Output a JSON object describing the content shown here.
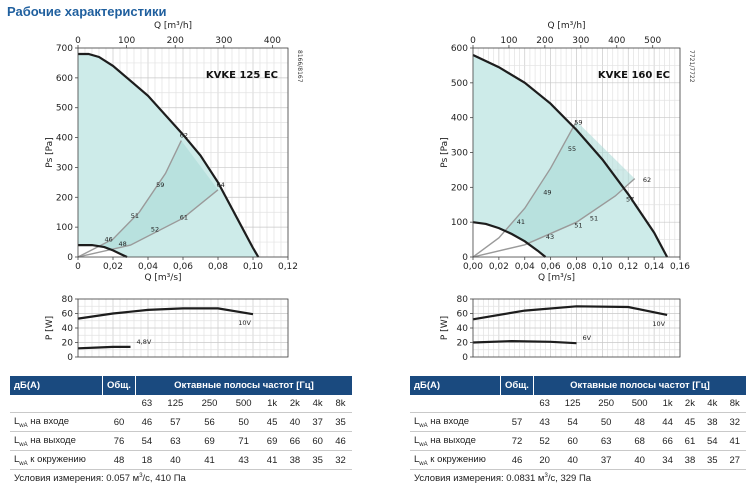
{
  "page": {
    "title": "Рабочие характеристики"
  },
  "colors": {
    "fill_light": "#cdebe9",
    "fill_dark": "#a7d9d5",
    "curve": "#1d1d1d",
    "rpm_line": "#9a9a9a",
    "table_header": "#1a4a7f"
  },
  "chart_data": [
    {
      "type": "line",
      "id": "kvke125_pressure",
      "title": "KVKE 125 EC",
      "code": "8166/8167",
      "ylabel": "Ps [Pa]",
      "xlabel": "Q [m³/s]",
      "x2label": "Q [m³/h]",
      "xlim": [
        0,
        0.12
      ],
      "ylim": [
        0,
        700
      ],
      "xticks": [
        "0",
        "0,02",
        "0,04",
        "0,06",
        "0,08",
        "0,10",
        "0,12"
      ],
      "xtick_values": [
        0,
        0.02,
        0.04,
        0.06,
        0.08,
        0.1,
        0.12
      ],
      "x2ticks": [
        "0",
        "100",
        "200",
        "300",
        "400"
      ],
      "x2tick_values": [
        0,
        100,
        200,
        300,
        400
      ],
      "yticks": [
        "0",
        "100",
        "200",
        "300",
        "400",
        "500",
        "600",
        "700"
      ],
      "ytick_values": [
        0,
        100,
        200,
        300,
        400,
        500,
        600,
        700
      ],
      "series": [
        {
          "role": "max",
          "x": [
            0,
            0.006,
            0.012,
            0.02,
            0.04,
            0.06,
            0.07,
            0.08,
            0.09,
            0.1,
            0.103
          ],
          "y": [
            680,
            680,
            670,
            640,
            540,
            410,
            340,
            250,
            140,
            30,
            0
          ]
        },
        {
          "role": "min",
          "x": [
            0,
            0.008,
            0.015,
            0.02,
            0.025,
            0.028
          ],
          "y": [
            40,
            40,
            33,
            22,
            8,
            0
          ]
        },
        {
          "role": "rpm",
          "x": [
            0,
            0.02,
            0.035,
            0.05,
            0.059
          ],
          "y": [
            0,
            60,
            150,
            280,
            390
          ]
        },
        {
          "role": "rpm",
          "x": [
            0,
            0.03,
            0.06,
            0.08
          ],
          "y": [
            0,
            40,
            130,
            225
          ]
        }
      ],
      "annotations": [
        {
          "text": "62",
          "x": 0.0605,
          "y": 400
        },
        {
          "text": "64",
          "x": 0.0815,
          "y": 235
        },
        {
          "text": "59",
          "x": 0.047,
          "y": 235
        },
        {
          "text": "61",
          "x": 0.0605,
          "y": 125
        },
        {
          "text": "51",
          "x": 0.0325,
          "y": 130
        },
        {
          "text": "52",
          "x": 0.044,
          "y": 85
        },
        {
          "text": "46",
          "x": 0.0175,
          "y": 52
        },
        {
          "text": "48",
          "x": 0.0255,
          "y": 37
        }
      ]
    },
    {
      "type": "line",
      "id": "kvke125_power",
      "ylabel": "P [W]",
      "xlim": [
        0,
        0.12
      ],
      "ylim": [
        0,
        80
      ],
      "yticks": [
        "0",
        "20",
        "40",
        "60",
        "80"
      ],
      "ytick_values": [
        0,
        20,
        40,
        60,
        80
      ],
      "series": [
        {
          "name": "10V",
          "x": [
            0,
            0.02,
            0.04,
            0.06,
            0.08,
            0.1
          ],
          "y": [
            53,
            60,
            65,
            67,
            67,
            59
          ]
        },
        {
          "name": "4,8V",
          "x": [
            0,
            0.01,
            0.02,
            0.03
          ],
          "y": [
            12,
            13,
            14,
            14
          ]
        }
      ]
    },
    {
      "type": "line",
      "id": "kvke160_pressure",
      "title": "KVKE 160 EC",
      "code": "7721/7722",
      "ylabel": "Ps [Pa]",
      "xlabel": "Q [m³/s]",
      "x2label": "Q [m³/h]",
      "xlim": [
        0,
        0.16
      ],
      "ylim": [
        0,
        600
      ],
      "xticks": [
        "0,00",
        "0,02",
        "0,04",
        "0,06",
        "0,08",
        "0,10",
        "0,12",
        "0,14",
        "0,16"
      ],
      "xtick_values": [
        0,
        0.02,
        0.04,
        0.06,
        0.08,
        0.1,
        0.12,
        0.14,
        0.16
      ],
      "x2ticks": [
        "0",
        "100",
        "200",
        "300",
        "400",
        "500"
      ],
      "x2tick_values": [
        0,
        100,
        200,
        300,
        400,
        500
      ],
      "yticks": [
        "0",
        "100",
        "200",
        "300",
        "400",
        "500",
        "600"
      ],
      "ytick_values": [
        0,
        100,
        200,
        300,
        400,
        500,
        600
      ],
      "series": [
        {
          "role": "max",
          "x": [
            0,
            0.02,
            0.04,
            0.06,
            0.08,
            0.1,
            0.12,
            0.14,
            0.15
          ],
          "y": [
            580,
            545,
            500,
            440,
            365,
            280,
            180,
            70,
            0
          ]
        },
        {
          "role": "min",
          "x": [
            0,
            0.01,
            0.02,
            0.03,
            0.04,
            0.05,
            0.056
          ],
          "y": [
            100,
            95,
            83,
            66,
            45,
            18,
            0
          ]
        },
        {
          "role": "rpm",
          "x": [
            0,
            0.02,
            0.04,
            0.06,
            0.08
          ],
          "y": [
            0,
            55,
            140,
            255,
            390
          ]
        },
        {
          "role": "rpm",
          "x": [
            0,
            0.04,
            0.08,
            0.11,
            0.125
          ],
          "y": [
            0,
            35,
            100,
            175,
            225
          ]
        }
      ],
      "annotations": [
        {
          "text": "59",
          "x": 0.0815,
          "y": 380
        },
        {
          "text": "55",
          "x": 0.0765,
          "y": 305
        },
        {
          "text": "49",
          "x": 0.0575,
          "y": 180
        },
        {
          "text": "41",
          "x": 0.037,
          "y": 95
        },
        {
          "text": "43",
          "x": 0.0595,
          "y": 52
        },
        {
          "text": "62",
          "x": 0.1345,
          "y": 215
        },
        {
          "text": "57",
          "x": 0.1215,
          "y": 160
        },
        {
          "text": "51",
          "x": 0.0935,
          "y": 105
        },
        {
          "text": "51",
          "x": 0.0815,
          "y": 85
        }
      ]
    },
    {
      "type": "line",
      "id": "kvke160_power",
      "ylabel": "P [W]",
      "xlim": [
        0,
        0.16
      ],
      "ylim": [
        0,
        80
      ],
      "yticks": [
        "0",
        "20",
        "40",
        "60",
        "80"
      ],
      "ytick_values": [
        0,
        20,
        40,
        60,
        80
      ],
      "series": [
        {
          "name": "10V",
          "x": [
            0,
            0.04,
            0.08,
            0.12,
            0.15
          ],
          "y": [
            52,
            64,
            70,
            69,
            58
          ]
        },
        {
          "name": "6V",
          "x": [
            0,
            0.03,
            0.06,
            0.08
          ],
          "y": [
            20,
            22,
            21,
            19
          ]
        }
      ]
    }
  ],
  "tables": [
    {
      "id": "kvke125",
      "col_dba": "дБ(А)",
      "col_total": "Общ.",
      "col_bands": "Октавные полосы частот [Гц]",
      "bands": [
        "63",
        "125",
        "250",
        "500",
        "1k",
        "2k",
        "4k",
        "8k"
      ],
      "rows": [
        {
          "label_main": "L",
          "label_sub": "wA",
          "label_rest": " на входе",
          "total": "60",
          "values": [
            "46",
            "57",
            "56",
            "50",
            "45",
            "40",
            "37",
            "35"
          ]
        },
        {
          "label_main": "L",
          "label_sub": "wA",
          "label_rest": " на выходе",
          "total": "76",
          "values": [
            "54",
            "63",
            "69",
            "71",
            "69",
            "66",
            "60",
            "46"
          ]
        },
        {
          "label_main": "L",
          "label_sub": "wA",
          "label_rest": " к окружению",
          "total": "48",
          "values": [
            "18",
            "40",
            "41",
            "43",
            "41",
            "38",
            "35",
            "32"
          ]
        }
      ],
      "conditions_pre": "Условия измерения: 0.057 м",
      "conditions_sup": "3",
      "conditions_post": "/с, 410 Па"
    },
    {
      "id": "kvke160",
      "col_dba": "дБ(А)",
      "col_total": "Общ.",
      "col_bands": "Октавные полосы частот [Гц]",
      "bands": [
        "63",
        "125",
        "250",
        "500",
        "1k",
        "2k",
        "4k",
        "8k"
      ],
      "rows": [
        {
          "label_main": "L",
          "label_sub": "wA",
          "label_rest": " на входе",
          "total": "57",
          "values": [
            "43",
            "54",
            "50",
            "48",
            "44",
            "45",
            "38",
            "32"
          ]
        },
        {
          "label_main": "L",
          "label_sub": "wA",
          "label_rest": " на выходе",
          "total": "72",
          "values": [
            "52",
            "60",
            "63",
            "68",
            "66",
            "61",
            "54",
            "41"
          ]
        },
        {
          "label_main": "L",
          "label_sub": "wA",
          "label_rest": " к окружению",
          "total": "46",
          "values": [
            "20",
            "40",
            "37",
            "40",
            "34",
            "38",
            "35",
            "27"
          ]
        }
      ],
      "conditions_pre": "Условия измерения: 0.0831 м",
      "conditions_sup": "3",
      "conditions_post": "/с, 329 Па"
    }
  ]
}
